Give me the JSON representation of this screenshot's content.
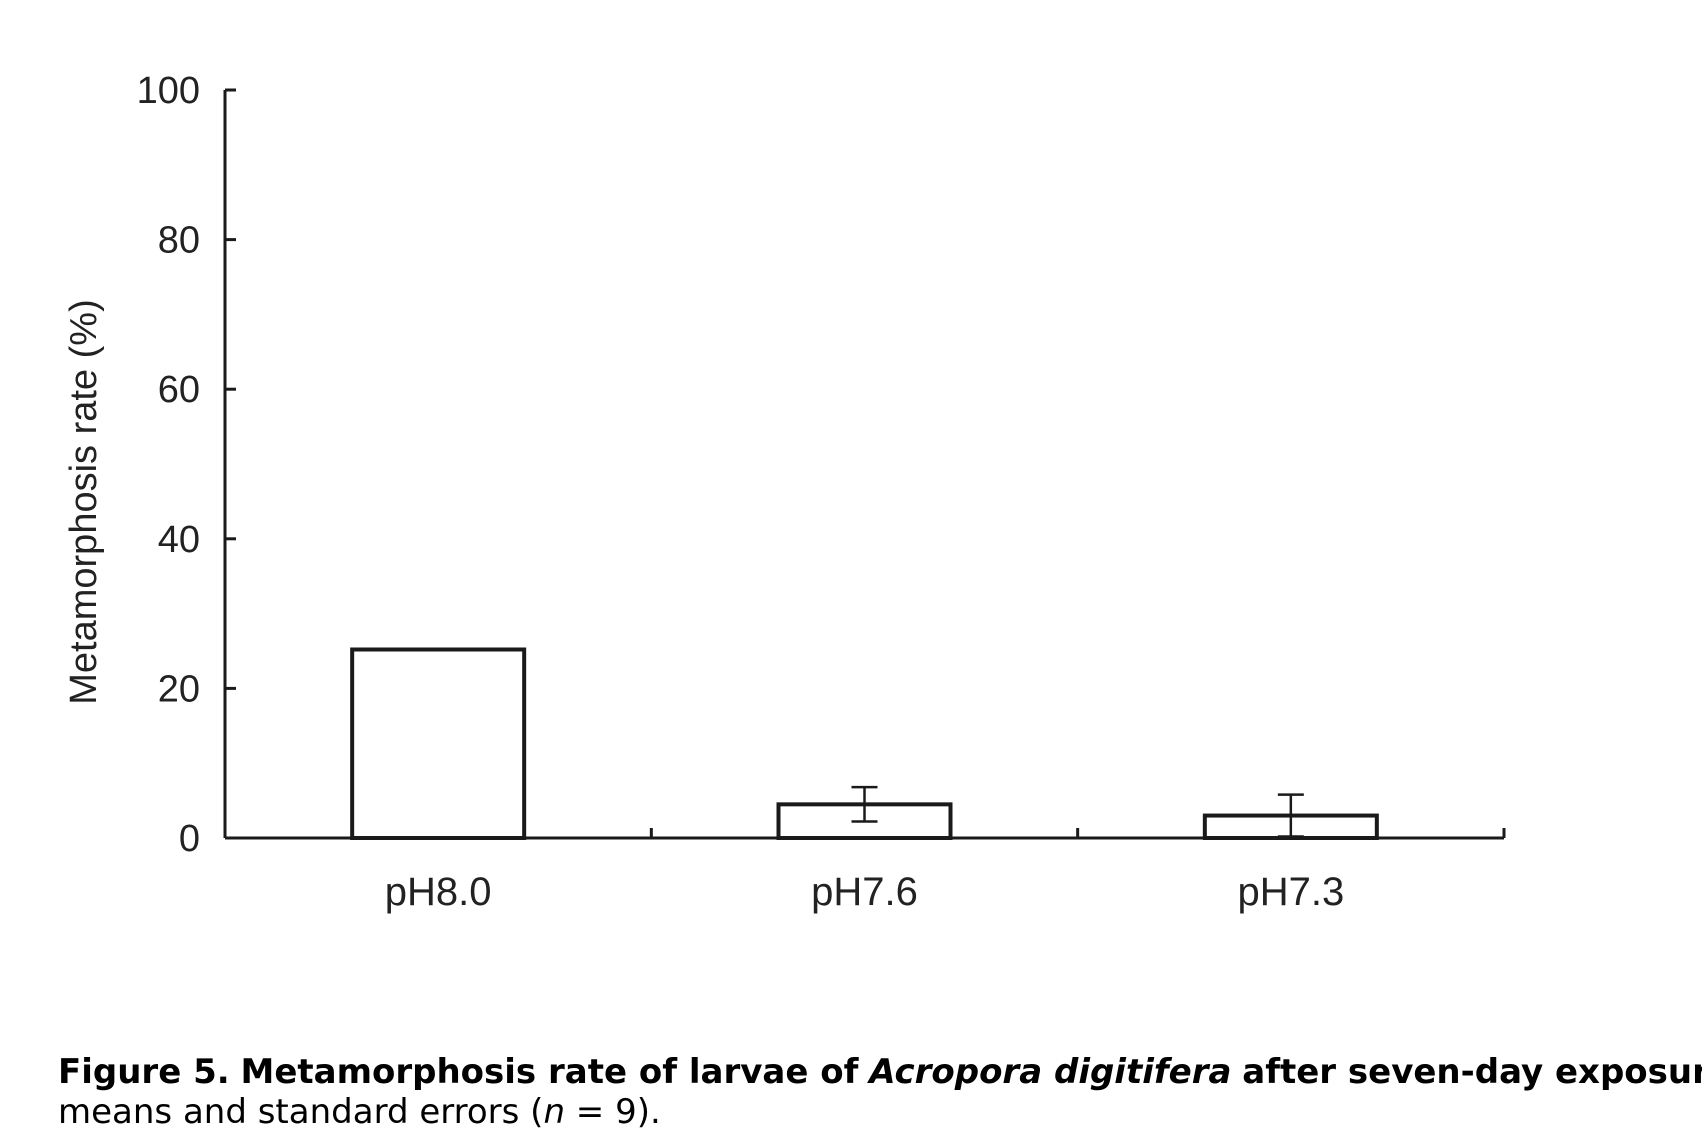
{
  "chart_data": {
    "type": "bar",
    "title": "",
    "xlabel": "",
    "ylabel": "Metamorphosis rate (%)",
    "categories": [
      "pH8.0",
      "pH7.6",
      "pH7.3"
    ],
    "values": [
      25.2,
      4.5,
      3.0
    ],
    "error": [
      0.0,
      2.3,
      2.8
    ],
    "ylim": [
      0,
      100
    ],
    "yticks": [
      "0",
      "20",
      "40",
      "60",
      "80",
      "100"
    ],
    "bar_fill": "#ffffff",
    "bar_stroke": "#1a1a1a",
    "grid": false,
    "legend": "none"
  },
  "caption": {
    "label": "Figure 5.",
    "text_bold_1": "Metamorphosis rate of larvae of",
    "species": "Acropora digitifera",
    "text_bold_2": "after seven-day exposure t",
    "line2_a": "means and standard errors (",
    "line2_n": "n",
    "line2_b": " = 9)."
  }
}
